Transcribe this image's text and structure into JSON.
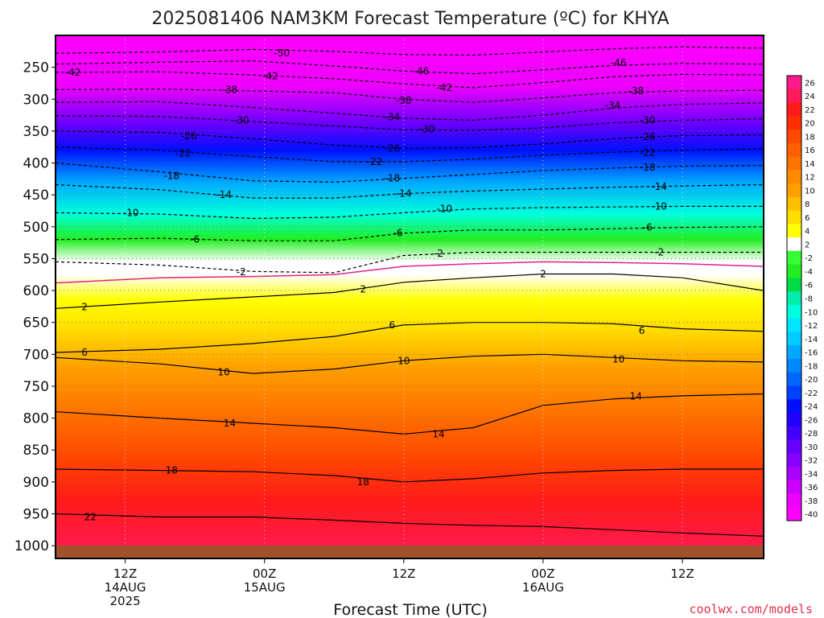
{
  "chart_data": {
    "type": "heatmap",
    "title": "2025081406 NAM3KM Forecast Temperature (ºC) for KHYA",
    "xlabel": "Forecast Time (UTC)",
    "ylabel": "",
    "credit": "coolwx.com/models",
    "pressure_range": [
      200,
      1020
    ],
    "y_ticks": [
      250,
      300,
      350,
      400,
      450,
      500,
      550,
      600,
      650,
      700,
      750,
      800,
      850,
      900,
      950,
      1000
    ],
    "x_ticks": [
      {
        "hour": 12,
        "line1": "12Z",
        "line2": "14AUG",
        "line3": "2025"
      },
      {
        "hour": 24,
        "line1": "00Z",
        "line2": "15AUG",
        "line3": ""
      },
      {
        "hour": 36,
        "line1": "12Z",
        "line2": "",
        "line3": ""
      },
      {
        "hour": 48,
        "line1": "00Z",
        "line2": "16AUG",
        "line3": ""
      },
      {
        "hour": 60,
        "line1": "12Z",
        "line2": "",
        "line3": ""
      }
    ],
    "x_range": [
      6,
      67
    ],
    "colorbar_ticks": [
      "26",
      "24",
      "22",
      "20",
      "18",
      "16",
      "14",
      "12",
      "10",
      "8",
      "6",
      "4",
      "2",
      "-2",
      "-4",
      "-6",
      "-8",
      "-10",
      "-12",
      "-14",
      "-16",
      "-18",
      "-20",
      "-22",
      "-24",
      "-26",
      "-28",
      "-30",
      "-32",
      "-34",
      "-36",
      "-38",
      "-40"
    ],
    "colorbar_colors": [
      "#ff1a8c",
      "#ff1a5a",
      "#ff1a1a",
      "#ff2e00",
      "#ff4800",
      "#ff5e00",
      "#ff7400",
      "#ff8a00",
      "#ffa000",
      "#ffbe00",
      "#ffde00",
      "#ffff00",
      "#ffffff",
      "#33ff33",
      "#22ee22",
      "#00dd44",
      "#00eeaa",
      "#00ffdd",
      "#00e6ff",
      "#00ccff",
      "#00a8ff",
      "#0088ff",
      "#0066ff",
      "#0040ff",
      "#0010ff",
      "#2200ff",
      "#4400ff",
      "#6600ff",
      "#8800ff",
      "#aa00ff",
      "#cc00ff",
      "#ee00ff",
      "#ff00ff"
    ],
    "series": [
      {
        "name": "-50",
        "x": [
          6,
          15,
          23,
          30,
          36,
          42,
          48,
          54,
          60,
          67
        ],
        "y": [
          228,
          226,
          222,
          225,
          230,
          231,
          226,
          221,
          218,
          220
        ]
      },
      {
        "name": "-46",
        "x": [
          6,
          15,
          23,
          30,
          36,
          42,
          48,
          54,
          60,
          67
        ],
        "y": [
          245,
          242,
          240,
          248,
          256,
          260,
          254,
          247,
          244,
          245
        ]
      },
      {
        "name": "-42",
        "x": [
          6,
          15,
          23,
          30,
          36,
          42,
          48,
          54,
          60,
          67
        ],
        "y": [
          258,
          257,
          262,
          268,
          276,
          282,
          274,
          265,
          261,
          262
        ]
      },
      {
        "name": "-38",
        "x": [
          6,
          15,
          23,
          30,
          36,
          42,
          48,
          54,
          60,
          67
        ],
        "y": [
          285,
          284,
          287,
          290,
          300,
          305,
          298,
          290,
          287,
          286
        ]
      },
      {
        "name": "-34",
        "x": [
          6,
          15,
          23,
          30,
          36,
          42,
          48,
          54,
          60,
          67
        ],
        "y": [
          305,
          304,
          313,
          322,
          330,
          333,
          325,
          314,
          308,
          306
        ]
      },
      {
        "name": "-30",
        "x": [
          6,
          15,
          23,
          30,
          36,
          42,
          48,
          54,
          60,
          67
        ],
        "y": [
          326,
          327,
          335,
          342,
          348,
          349,
          345,
          337,
          333,
          331
        ]
      },
      {
        "name": "-26",
        "x": [
          6,
          15,
          23,
          30,
          36,
          42,
          48,
          54,
          60,
          67
        ],
        "y": [
          350,
          352,
          362,
          372,
          377,
          376,
          370,
          362,
          357,
          356
        ]
      },
      {
        "name": "-22",
        "x": [
          6,
          15,
          23,
          30,
          36,
          42,
          48,
          54,
          60,
          67
        ],
        "y": [
          375,
          380,
          390,
          398,
          398,
          394,
          388,
          383,
          380,
          378
        ]
      },
      {
        "name": "-18",
        "x": [
          6,
          15,
          23,
          30,
          36,
          42,
          48,
          54,
          60,
          67
        ],
        "y": [
          400,
          414,
          428,
          430,
          424,
          418,
          412,
          408,
          405,
          404
        ]
      },
      {
        "name": "-14",
        "x": [
          6,
          15,
          23,
          30,
          36,
          42,
          48,
          54,
          60,
          67
        ],
        "y": [
          434,
          442,
          455,
          455,
          448,
          444,
          441,
          438,
          436,
          434
        ]
      },
      {
        "name": "-10",
        "x": [
          6,
          15,
          23,
          30,
          36,
          42,
          48,
          54,
          60,
          67
        ],
        "y": [
          478,
          480,
          487,
          485,
          478,
          472,
          470,
          469,
          468,
          468
        ]
      },
      {
        "name": "-6",
        "x": [
          6,
          15,
          23,
          30,
          36,
          42,
          48,
          54,
          60,
          67
        ],
        "y": [
          520,
          518,
          522,
          522,
          510,
          505,
          505,
          503,
          501,
          500
        ]
      },
      {
        "name": "-2",
        "x": [
          6,
          15,
          23,
          30,
          36,
          42,
          48,
          54,
          60,
          67
        ],
        "y": [
          555,
          560,
          570,
          572,
          545,
          540,
          540,
          540,
          540,
          540
        ]
      },
      {
        "name": "2",
        "x": [
          6,
          15,
          23,
          30,
          36,
          42,
          48,
          54,
          60,
          67
        ],
        "y": [
          628,
          618,
          610,
          603,
          587,
          580,
          574,
          574,
          580,
          600
        ]
      },
      {
        "name": "6",
        "x": [
          6,
          15,
          23,
          30,
          36,
          42,
          48,
          54,
          60,
          67
        ],
        "y": [
          697,
          692,
          683,
          672,
          654,
          650,
          650,
          652,
          660,
          664
        ]
      },
      {
        "name": "10",
        "x": [
          6,
          15,
          23,
          30,
          36,
          42,
          48,
          54,
          60,
          67
        ],
        "y": [
          705,
          715,
          730,
          723,
          710,
          703,
          700,
          705,
          710,
          712
        ]
      },
      {
        "name": "14",
        "x": [
          6,
          15,
          23,
          30,
          36,
          42,
          48,
          54,
          60,
          67
        ],
        "y": [
          790,
          800,
          808,
          815,
          825,
          815,
          780,
          770,
          765,
          762
        ]
      },
      {
        "name": "18",
        "x": [
          6,
          15,
          23,
          30,
          36,
          42,
          48,
          54,
          60,
          67
        ],
        "y": [
          880,
          882,
          884,
          890,
          900,
          895,
          886,
          882,
          880,
          880
        ]
      },
      {
        "name": "22",
        "x": [
          6,
          15,
          23,
          30,
          36,
          42,
          48,
          54,
          60,
          67
        ],
        "y": [
          950,
          955,
          955,
          960,
          965,
          968,
          970,
          975,
          980,
          985
        ]
      }
    ],
    "freezing_line": {
      "name": "0",
      "x": [
        6,
        15,
        23,
        30,
        36,
        42,
        48,
        54,
        60,
        67
      ],
      "y": [
        588,
        580,
        578,
        575,
        562,
        558,
        555,
        556,
        558,
        562
      ]
    },
    "contour_labels": [
      {
        "text": "-50",
        "hour": 25.5,
        "p": 228
      },
      {
        "text": "-46",
        "hour": 37.5,
        "p": 256
      },
      {
        "text": "-46",
        "hour": 54.5,
        "p": 243
      },
      {
        "text": "-42",
        "hour": 7.5,
        "p": 258
      },
      {
        "text": "-42",
        "hour": 24.5,
        "p": 264
      },
      {
        "text": "-42",
        "hour": 39.5,
        "p": 282
      },
      {
        "text": "-38",
        "hour": 21,
        "p": 285
      },
      {
        "text": "-38",
        "hour": 36,
        "p": 302
      },
      {
        "text": "-38",
        "hour": 56,
        "p": 287
      },
      {
        "text": "-34",
        "hour": 35,
        "p": 328
      },
      {
        "text": "-34",
        "hour": 54,
        "p": 310
      },
      {
        "text": "-30",
        "hour": 22,
        "p": 333
      },
      {
        "text": "-30",
        "hour": 38,
        "p": 347
      },
      {
        "text": "-30",
        "hour": 57,
        "p": 333
      },
      {
        "text": "-26",
        "hour": 17.5,
        "p": 358
      },
      {
        "text": "-26",
        "hour": 35,
        "p": 377
      },
      {
        "text": "-26",
        "hour": 57,
        "p": 359
      },
      {
        "text": "-22",
        "hour": 17,
        "p": 385
      },
      {
        "text": "-22",
        "hour": 33.5,
        "p": 398
      },
      {
        "text": "-22",
        "hour": 57,
        "p": 384
      },
      {
        "text": "-18",
        "hour": 16,
        "p": 420
      },
      {
        "text": "-18",
        "hour": 35,
        "p": 424
      },
      {
        "text": "-18",
        "hour": 57,
        "p": 407
      },
      {
        "text": "-14",
        "hour": 20.5,
        "p": 450
      },
      {
        "text": "-14",
        "hour": 36,
        "p": 448
      },
      {
        "text": "-14",
        "hour": 58,
        "p": 437
      },
      {
        "text": "-10",
        "hour": 12.5,
        "p": 478
      },
      {
        "text": "-10",
        "hour": 39.5,
        "p": 472
      },
      {
        "text": "-10",
        "hour": 58,
        "p": 468
      },
      {
        "text": "-6",
        "hour": 18,
        "p": 520
      },
      {
        "text": "-6",
        "hour": 35.5,
        "p": 510
      },
      {
        "text": "-6",
        "hour": 57,
        "p": 501
      },
      {
        "text": "-2",
        "hour": 22,
        "p": 571
      },
      {
        "text": "-2",
        "hour": 39,
        "p": 542
      },
      {
        "text": "-2",
        "hour": 58,
        "p": 540
      },
      {
        "text": "2",
        "hour": 8.5,
        "p": 626
      },
      {
        "text": "2",
        "hour": 32.5,
        "p": 598
      },
      {
        "text": "2",
        "hour": 48,
        "p": 574
      },
      {
        "text": "6",
        "hour": 8.5,
        "p": 697
      },
      {
        "text": "6",
        "hour": 35,
        "p": 654
      },
      {
        "text": "6",
        "hour": 56.5,
        "p": 663
      },
      {
        "text": "10",
        "hour": 20.5,
        "p": 728
      },
      {
        "text": "10",
        "hour": 36,
        "p": 710
      },
      {
        "text": "10",
        "hour": 54.5,
        "p": 708
      },
      {
        "text": "14",
        "hour": 21,
        "p": 808
      },
      {
        "text": "14",
        "hour": 39,
        "p": 825
      },
      {
        "text": "14",
        "hour": 56,
        "p": 766
      },
      {
        "text": "18",
        "hour": 16,
        "p": 882
      },
      {
        "text": "18",
        "hour": 32.5,
        "p": 900
      },
      {
        "text": "22",
        "hour": 9,
        "p": 955
      }
    ]
  }
}
